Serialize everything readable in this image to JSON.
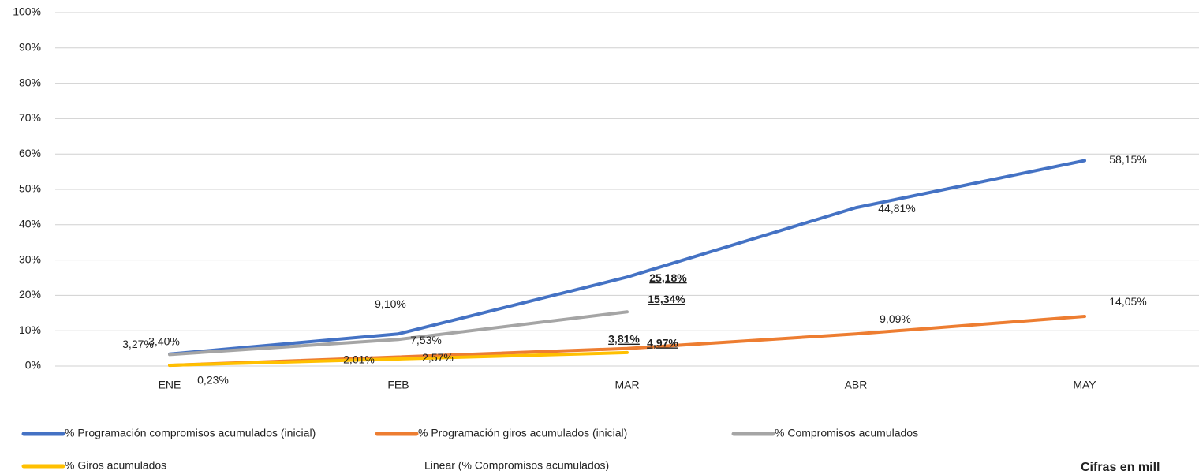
{
  "chart_data": {
    "type": "line",
    "categories": [
      "ENE",
      "FEB",
      "MAR",
      "ABR",
      "MAY"
    ],
    "series": [
      {
        "name": "% Programación compromisos acumulados (inicial)",
        "color": "#4472c4",
        "values": [
          3.4,
          9.1,
          25.18,
          44.81,
          58.15
        ],
        "value_labels": [
          "3,40%",
          "9,10%",
          "25,18%",
          "44,81%",
          "58,15%"
        ]
      },
      {
        "name": "% Programación giros acumulados (inicial)",
        "color": "#ed7d31",
        "values": [
          0.2,
          2.57,
          4.97,
          9.09,
          14.05
        ],
        "value_labels": [
          null,
          "2,57%",
          "4,97%",
          "9,09%",
          "14,05%"
        ]
      },
      {
        "name": "% Compromisos acumulados",
        "color": "#a5a5a5",
        "values": [
          3.27,
          7.53,
          15.34,
          null,
          null
        ],
        "value_labels": [
          "3,27%",
          "7,53%",
          "15,34%",
          null,
          null
        ]
      },
      {
        "name": "% Giros acumulados",
        "color": "#ffc000",
        "values": [
          0.23,
          2.01,
          3.81,
          null,
          null
        ],
        "value_labels": [
          "0,23%",
          "2,01%",
          "3,81%",
          null,
          null
        ]
      }
    ],
    "trendline_label": "Linear (% Compromisos acumulados)",
    "note": "Cifras en mill",
    "ylim": [
      0,
      100
    ],
    "yticks": [
      {
        "value": 0,
        "label": "0%"
      },
      {
        "value": 10,
        "label": "10%"
      },
      {
        "value": 20,
        "label": "20%"
      },
      {
        "value": 30,
        "label": "30%"
      },
      {
        "value": 40,
        "label": "40%"
      },
      {
        "value": 50,
        "label": "50%"
      },
      {
        "value": 60,
        "label": "60%"
      },
      {
        "value": 70,
        "label": "70%"
      },
      {
        "value": 80,
        "label": "80%"
      },
      {
        "value": 90,
        "label": "90%"
      },
      {
        "value": 100,
        "label": "100%"
      }
    ],
    "grid": true
  }
}
